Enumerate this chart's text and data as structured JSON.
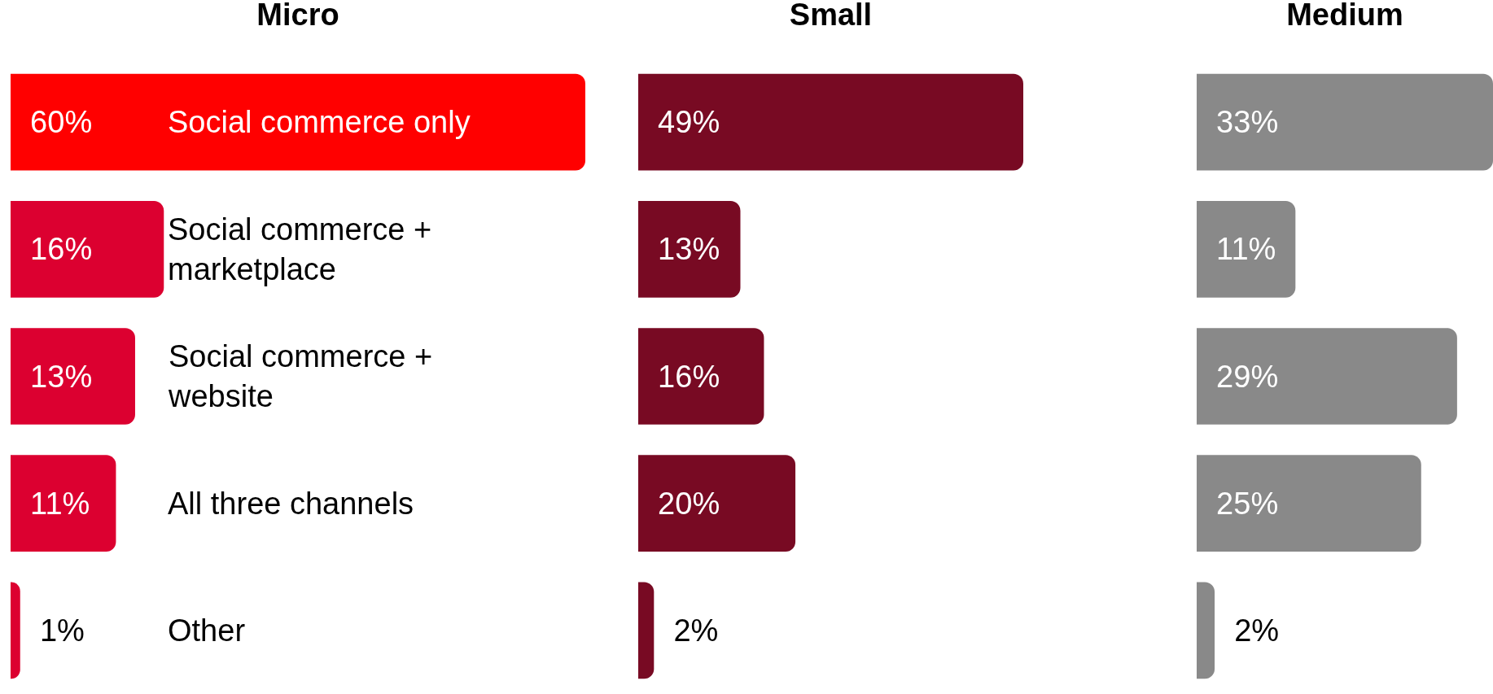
{
  "chart_data": [
    {
      "type": "bar",
      "title": "Micro",
      "orientation": "horizontal",
      "categories": [
        "Social commerce only",
        "Social commerce + marketplace",
        "Social commerce + website",
        "All three channels",
        "Other"
      ],
      "values": [
        60,
        16,
        13,
        11,
        1
      ],
      "colors": [
        "#ff0000",
        "#dc0030",
        "#dc0030",
        "#dc0030",
        "#dc0030"
      ],
      "value_labels": [
        "60%",
        "16%",
        "13%",
        "11%",
        "1%"
      ],
      "grid": false,
      "legend": false
    },
    {
      "type": "bar",
      "title": "Small",
      "orientation": "horizontal",
      "categories": [
        null,
        null,
        null,
        null,
        null
      ],
      "values": [
        49,
        13,
        16,
        20,
        2
      ],
      "colors": [
        "#780a23",
        "#780a23",
        "#780a23",
        "#780a23",
        "#780a23"
      ],
      "value_labels": [
        "49%",
        "13%",
        "16%",
        "20%",
        "2%"
      ],
      "grid": false,
      "legend": false
    },
    {
      "type": "bar",
      "title": "Medium",
      "orientation": "horizontal",
      "categories": [
        null,
        null,
        null,
        null,
        null
      ],
      "values": [
        33,
        11,
        29,
        25,
        2
      ],
      "colors": [
        "#898989",
        "#898989",
        "#898989",
        "#898989",
        "#898989"
      ],
      "value_labels": [
        "33%",
        "11%",
        "29%",
        "25%",
        "2%"
      ],
      "grid": false,
      "legend": false
    }
  ]
}
